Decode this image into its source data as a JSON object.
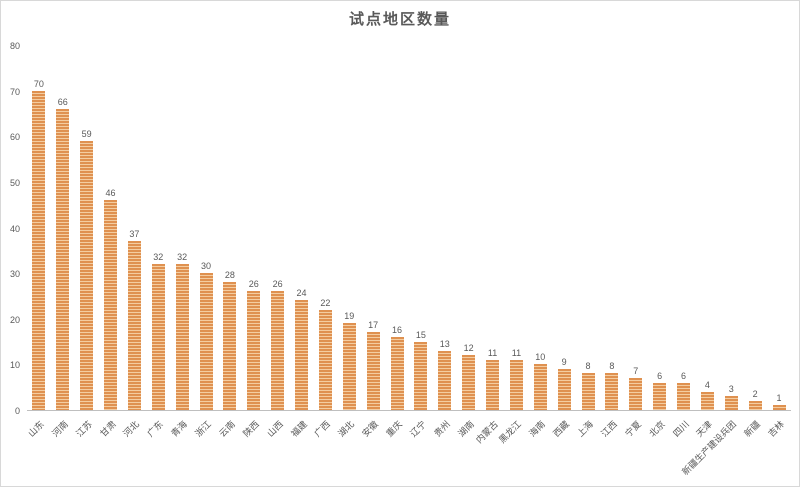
{
  "chart_data": {
    "type": "bar",
    "title": "试点地区数量",
    "categories": [
      "山东",
      "河南",
      "江苏",
      "甘肃",
      "河北",
      "广东",
      "青海",
      "浙江",
      "云南",
      "陕西",
      "山西",
      "福建",
      "广西",
      "湖北",
      "安徽",
      "重庆",
      "辽宁",
      "贵州",
      "湖南",
      "内蒙古",
      "黑龙江",
      "海南",
      "西藏",
      "上海",
      "江西",
      "宁夏",
      "北京",
      "四川",
      "天津",
      "新疆生产建设兵团",
      "新疆",
      "吉林"
    ],
    "values": [
      70,
      66,
      59,
      46,
      37,
      32,
      32,
      30,
      28,
      26,
      26,
      24,
      22,
      19,
      17,
      16,
      15,
      13,
      12,
      11,
      11,
      10,
      9,
      8,
      8,
      7,
      6,
      6,
      4,
      3,
      2,
      1
    ],
    "xlabel": "",
    "ylabel": "",
    "ylim": [
      0,
      80
    ],
    "y_ticks": [
      0,
      10,
      20,
      30,
      40,
      50,
      60,
      70,
      80
    ],
    "grid": false,
    "legend": "none",
    "value_labels": true,
    "x_label_rotation_deg": -45,
    "bar_color": "#df9150",
    "bar_stripe_color": "#f4cda0",
    "text_color": "#595959",
    "axis_line_color": "#bfbfbf"
  }
}
